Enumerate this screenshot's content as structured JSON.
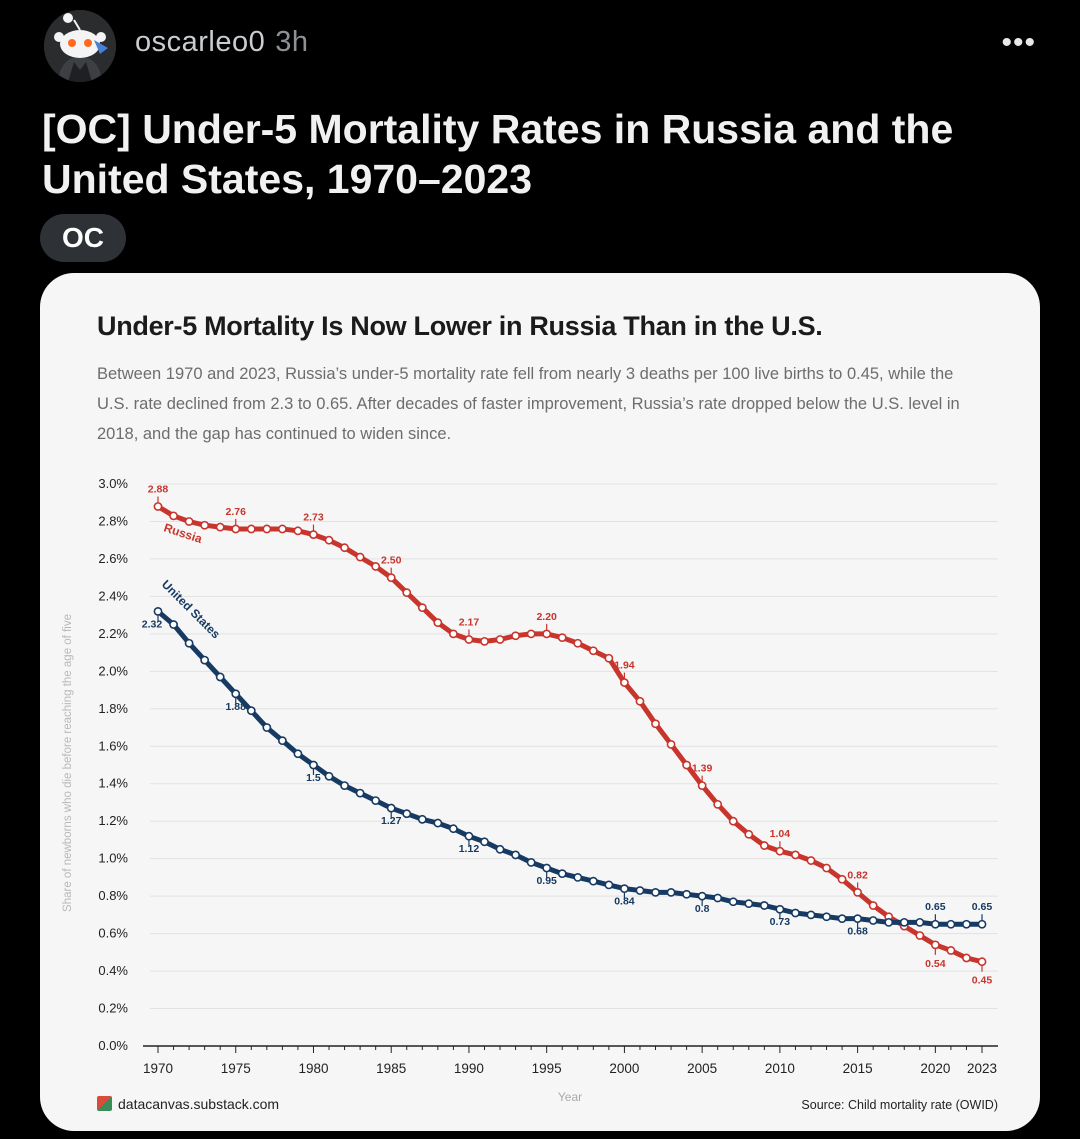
{
  "post": {
    "username": "oscarleo0",
    "time": "3h",
    "more_label": "•••",
    "title": "[OC] Under-5 Mortality Rates in Russia and the United States, 1970–2023",
    "flair": "OC"
  },
  "colors": {
    "russia": "#c8352c",
    "us": "#173a63",
    "card_bg": "#f6f6f6"
  },
  "chart_header": {
    "title": "Under-5 Mortality Is Now Lower in Russia Than in the U.S.",
    "subtitle": "Between 1970 and 2023, Russia’s under-5 mortality rate fell from nearly 3 deaths per 100 live births to 0.45, while the U.S. rate declined from 2.3 to 0.65. After decades of faster improvement, Russia’s rate dropped below the U.S. level in 2018, and the gap has continued to widen since."
  },
  "footer": {
    "source_left": "datacanvas.substack.com",
    "source_right": "Source: Child mortality rate (OWID)"
  },
  "chart_data": {
    "type": "line",
    "title": "Under-5 Mortality Is Now Lower in Russia Than in the U.S.",
    "xlabel": "Year",
    "ylabel": "Share of newborns who die before reaching the age of five",
    "xlim": [
      1970,
      2023
    ],
    "ylim": [
      0,
      3.0
    ],
    "x_ticks": [
      "1970",
      "1975",
      "1980",
      "1985",
      "1990",
      "1995",
      "2000",
      "2005",
      "2010",
      "2015",
      "2020",
      "2023"
    ],
    "y_ticks": [
      "0.0%",
      "0.2%",
      "0.4%",
      "0.6%",
      "0.8%",
      "1.0%",
      "1.2%",
      "1.4%",
      "1.6%",
      "1.8%",
      "2.0%",
      "2.2%",
      "2.4%",
      "2.6%",
      "2.8%",
      "3.0%"
    ],
    "x": [
      1970,
      1971,
      1972,
      1973,
      1974,
      1975,
      1976,
      1977,
      1978,
      1979,
      1980,
      1981,
      1982,
      1983,
      1984,
      1985,
      1986,
      1987,
      1988,
      1989,
      1990,
      1991,
      1992,
      1993,
      1994,
      1995,
      1996,
      1997,
      1998,
      1999,
      2000,
      2001,
      2002,
      2003,
      2004,
      2005,
      2006,
      2007,
      2008,
      2009,
      2010,
      2011,
      2012,
      2013,
      2014,
      2015,
      2016,
      2017,
      2018,
      2019,
      2020,
      2021,
      2022,
      2023
    ],
    "series": [
      {
        "name": "Russia",
        "values": [
          2.88,
          2.83,
          2.8,
          2.78,
          2.77,
          2.76,
          2.76,
          2.76,
          2.76,
          2.75,
          2.73,
          2.7,
          2.66,
          2.61,
          2.56,
          2.5,
          2.42,
          2.34,
          2.26,
          2.2,
          2.17,
          2.16,
          2.17,
          2.19,
          2.2,
          2.2,
          2.18,
          2.15,
          2.11,
          2.07,
          1.94,
          1.84,
          1.72,
          1.61,
          1.5,
          1.39,
          1.29,
          1.2,
          1.13,
          1.07,
          1.04,
          1.02,
          0.99,
          0.95,
          0.89,
          0.82,
          0.75,
          0.69,
          0.64,
          0.59,
          0.54,
          0.51,
          0.47,
          0.45
        ],
        "labels": [
          {
            "year": 1970,
            "text": "2.88"
          },
          {
            "year": 1975,
            "text": "2.76"
          },
          {
            "year": 1980,
            "text": "2.73"
          },
          {
            "year": 1985,
            "text": "2.50"
          },
          {
            "year": 1990,
            "text": "2.17"
          },
          {
            "year": 1995,
            "text": "2.20"
          },
          {
            "year": 2000,
            "text": "1.94"
          },
          {
            "year": 2005,
            "text": "1.39"
          },
          {
            "year": 2010,
            "text": "1.04"
          },
          {
            "year": 2015,
            "text": "0.82"
          },
          {
            "year": 2020,
            "text": "0.54"
          },
          {
            "year": 2023,
            "text": "0.45"
          }
        ]
      },
      {
        "name": "United States",
        "values": [
          2.32,
          2.25,
          2.15,
          2.06,
          1.97,
          1.88,
          1.79,
          1.7,
          1.63,
          1.56,
          1.5,
          1.44,
          1.39,
          1.35,
          1.31,
          1.27,
          1.24,
          1.21,
          1.19,
          1.16,
          1.12,
          1.09,
          1.05,
          1.02,
          0.98,
          0.95,
          0.92,
          0.9,
          0.88,
          0.86,
          0.84,
          0.83,
          0.82,
          0.82,
          0.81,
          0.8,
          0.79,
          0.77,
          0.76,
          0.75,
          0.73,
          0.71,
          0.7,
          0.69,
          0.68,
          0.68,
          0.67,
          0.66,
          0.66,
          0.66,
          0.65,
          0.65,
          0.65,
          0.65
        ],
        "labels": [
          {
            "year": 1970,
            "text": "2.32"
          },
          {
            "year": 1975,
            "text": "1.88"
          },
          {
            "year": 1980,
            "text": "1.5"
          },
          {
            "year": 1985,
            "text": "1.27"
          },
          {
            "year": 1990,
            "text": "1.12"
          },
          {
            "year": 1995,
            "text": "0.95"
          },
          {
            "year": 2000,
            "text": "0.84"
          },
          {
            "year": 2005,
            "text": "0.8"
          },
          {
            "year": 2010,
            "text": "0.73"
          },
          {
            "year": 2015,
            "text": "0.68"
          },
          {
            "year": 2020,
            "text": "0.65"
          },
          {
            "year": 2023,
            "text": "0.65"
          }
        ]
      }
    ]
  }
}
